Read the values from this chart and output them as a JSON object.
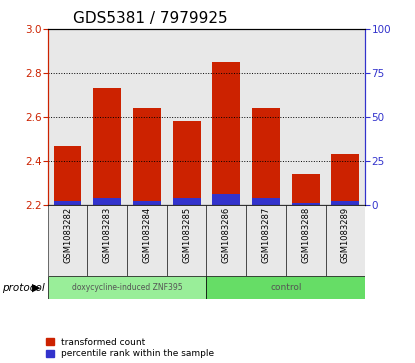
{
  "title": "GDS5381 / 7979925",
  "samples": [
    "GSM1083282",
    "GSM1083283",
    "GSM1083284",
    "GSM1083285",
    "GSM1083286",
    "GSM1083287",
    "GSM1083288",
    "GSM1083289"
  ],
  "red_values": [
    2.47,
    2.73,
    2.64,
    2.58,
    2.85,
    2.64,
    2.34,
    2.43
  ],
  "blue_values": [
    2.22,
    2.23,
    2.22,
    2.23,
    2.25,
    2.23,
    2.21,
    2.22
  ],
  "ylim": [
    2.2,
    3.0
  ],
  "yticks_left": [
    2.2,
    2.4,
    2.6,
    2.8,
    3.0
  ],
  "yticks_right": [
    0,
    25,
    50,
    75,
    100
  ],
  "bar_width": 0.7,
  "red_color": "#cc2200",
  "blue_color": "#3333cc",
  "protocol_groups": [
    {
      "label": "doxycycline-induced ZNF395",
      "count": 4,
      "color": "#99ee99"
    },
    {
      "label": "control",
      "count": 4,
      "color": "#66dd66"
    }
  ],
  "legend_items": [
    {
      "label": "transformed count",
      "color": "#cc2200"
    },
    {
      "label": "percentile rank within the sample",
      "color": "#3333cc"
    }
  ],
  "protocol_label": "protocol",
  "plot_bg_color": "#e8e8e8",
  "title_fontsize": 11,
  "tick_fontsize": 7.5,
  "sample_fontsize": 6.0
}
